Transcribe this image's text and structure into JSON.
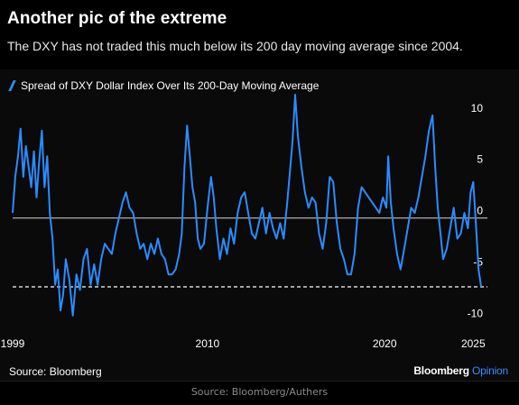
{
  "header": {
    "title": "Another pic of the extreme",
    "subtitle": "The DXY has not traded this much below its 200 day moving average since 2004."
  },
  "footer": {
    "source": "Source: Bloomberg",
    "logo_main": "Bloomberg",
    "logo_accent": "Opinion",
    "credit": "Source: Bloomberg/Authers"
  },
  "colors": {
    "series": "#2b8cff",
    "zero_line": "#d8d8d8",
    "threshold_line": "#ffffff",
    "background": "#000000"
  },
  "chart_data": {
    "type": "line",
    "title": "",
    "xlabel": "",
    "ylabel": "",
    "xlim": [
      1999,
      2025.8
    ],
    "ylim": [
      -11,
      12
    ],
    "y_ticks": [
      10,
      5,
      0,
      -5,
      -10
    ],
    "y_tick_labels": [
      "10",
      "5",
      "0",
      "-5",
      "-10"
    ],
    "x_ticks": [
      1999,
      2010,
      2020,
      2025
    ],
    "x_tick_labels": [
      "1999",
      "2010",
      "2020",
      "2025"
    ],
    "grid": false,
    "y_axis_side": "right",
    "zero_line": 0,
    "threshold_line": -6.7,
    "legend_position": "top-left",
    "series": [
      {
        "name": "Spread of DXY Dollar Index Over Its 200-Day Moving Average",
        "x": [
          1999.0,
          1999.15,
          1999.3,
          1999.45,
          1999.6,
          1999.75,
          1999.9,
          2000.05,
          2000.2,
          2000.35,
          2000.5,
          2000.65,
          2000.8,
          2000.95,
          2001.1,
          2001.25,
          2001.4,
          2001.55,
          2001.7,
          2001.85,
          2002.0,
          2002.2,
          2002.4,
          2002.6,
          2002.8,
          2003.0,
          2003.2,
          2003.4,
          2003.6,
          2003.8,
          2004.0,
          2004.2,
          2004.4,
          2004.6,
          2004.8,
          2005.0,
          2005.2,
          2005.4,
          2005.6,
          2005.8,
          2006.0,
          2006.2,
          2006.4,
          2006.6,
          2006.8,
          2007.0,
          2007.2,
          2007.4,
          2007.6,
          2007.8,
          2008.0,
          2008.2,
          2008.4,
          2008.55,
          2008.7,
          2008.85,
          2009.0,
          2009.15,
          2009.3,
          2009.45,
          2009.6,
          2009.8,
          2010.0,
          2010.2,
          2010.35,
          2010.5,
          2010.7,
          2010.9,
          2011.1,
          2011.3,
          2011.5,
          2011.7,
          2011.9,
          2012.1,
          2012.3,
          2012.5,
          2012.7,
          2012.9,
          2013.1,
          2013.3,
          2013.5,
          2013.7,
          2013.9,
          2014.1,
          2014.3,
          2014.5,
          2014.65,
          2014.8,
          2014.95,
          2015.1,
          2015.3,
          2015.5,
          2015.7,
          2015.9,
          2016.1,
          2016.3,
          2016.5,
          2016.7,
          2016.9,
          2017.1,
          2017.3,
          2017.5,
          2017.7,
          2017.9,
          2018.1,
          2018.3,
          2018.5,
          2018.7,
          2018.9,
          2019.1,
          2019.3,
          2019.5,
          2019.7,
          2019.9,
          2020.1,
          2020.2,
          2020.35,
          2020.5,
          2020.7,
          2020.9,
          2021.1,
          2021.3,
          2021.5,
          2021.7,
          2021.9,
          2022.1,
          2022.3,
          2022.5,
          2022.7,
          2022.85,
          2023.0,
          2023.15,
          2023.3,
          2023.5,
          2023.7,
          2023.9,
          2024.1,
          2024.3,
          2024.5,
          2024.7,
          2024.85,
          2025.0,
          2025.15,
          2025.3,
          2025.45
        ],
        "y": [
          0.5,
          4.0,
          6.0,
          8.7,
          4.0,
          7.0,
          5.0,
          3.0,
          6.5,
          2.0,
          5.5,
          8.5,
          3.0,
          6.0,
          0.5,
          -2.0,
          -6.5,
          -5.0,
          -9.0,
          -7.5,
          -4.0,
          -6.0,
          -9.5,
          -5.5,
          -7.0,
          -4.0,
          -3.0,
          -6.5,
          -4.5,
          -6.5,
          -4.0,
          -2.5,
          -3.0,
          -3.5,
          -1.5,
          0.0,
          1.5,
          2.5,
          1.0,
          0.5,
          -1.5,
          -3.0,
          -2.5,
          -4.0,
          -2.5,
          -3.5,
          -2.0,
          -3.5,
          -4.0,
          -5.5,
          -5.5,
          -5.0,
          -3.5,
          -1.5,
          5.0,
          9.0,
          6.0,
          3.0,
          1.5,
          -2.0,
          -3.0,
          -2.5,
          1.0,
          4.0,
          2.0,
          -1.0,
          -4.0,
          -2.0,
          -3.5,
          -1.0,
          -2.5,
          0.5,
          2.0,
          2.5,
          0.5,
          -1.5,
          -2.0,
          -0.5,
          1.0,
          -1.5,
          0.5,
          -1.0,
          -2.0,
          -0.5,
          -2.0,
          1.5,
          4.5,
          7.5,
          12.0,
          8.0,
          5.0,
          2.5,
          1.0,
          2.0,
          1.5,
          -1.5,
          -3.0,
          -0.5,
          4.0,
          3.5,
          -0.5,
          -3.0,
          -4.0,
          -5.5,
          -5.5,
          -3.5,
          1.0,
          3.0,
          2.5,
          2.0,
          1.5,
          1.0,
          0.5,
          2.0,
          1.0,
          6.0,
          1.5,
          -1.0,
          -3.5,
          -5.0,
          -3.0,
          -1.0,
          1.0,
          0.5,
          2.0,
          4.0,
          6.0,
          8.5,
          10.0,
          5.0,
          1.0,
          -1.5,
          -4.0,
          -3.0,
          -1.0,
          1.0,
          -2.0,
          -1.5,
          0.5,
          -1.0,
          2.5,
          3.5,
          -0.5,
          -5.0,
          -6.7
        ]
      }
    ]
  }
}
